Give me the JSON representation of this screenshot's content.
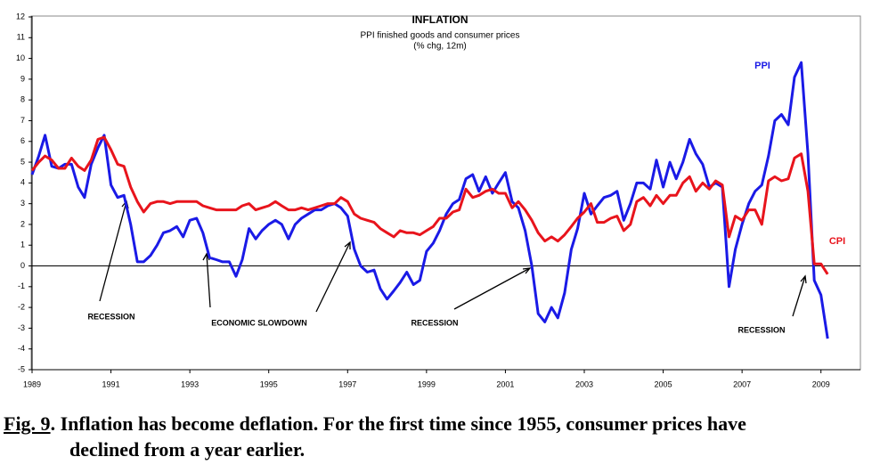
{
  "chart_data": {
    "type": "line",
    "title": "INFLATION",
    "subtitle": [
      "PPI finished goods and consumer prices",
      "(% chg, 12m)"
    ],
    "x": [
      1989,
      1989.17,
      1989.33,
      1989.5,
      1989.67,
      1989.83,
      1990,
      1990.17,
      1990.33,
      1990.5,
      1990.67,
      1990.83,
      1991,
      1991.17,
      1991.33,
      1991.5,
      1991.67,
      1991.83,
      1992,
      1992.17,
      1992.33,
      1992.5,
      1992.67,
      1992.83,
      1993,
      1993.17,
      1993.33,
      1993.5,
      1993.67,
      1993.83,
      1994,
      1994.17,
      1994.33,
      1994.5,
      1994.67,
      1994.83,
      1995,
      1995.17,
      1995.33,
      1995.5,
      1995.67,
      1995.83,
      1996,
      1996.17,
      1996.33,
      1996.5,
      1996.67,
      1996.83,
      1997,
      1997.17,
      1997.33,
      1997.5,
      1997.67,
      1997.83,
      1998,
      1998.17,
      1998.33,
      1998.5,
      1998.67,
      1998.83,
      1999,
      1999.17,
      1999.33,
      1999.5,
      1999.67,
      1999.83,
      2000,
      2000.17,
      2000.33,
      2000.5,
      2000.67,
      2000.83,
      2001,
      2001.17,
      2001.33,
      2001.5,
      2001.67,
      2001.83,
      2002,
      2002.17,
      2002.33,
      2002.5,
      2002.67,
      2002.83,
      2003,
      2003.17,
      2003.33,
      2003.5,
      2003.67,
      2003.83,
      2004,
      2004.17,
      2004.33,
      2004.5,
      2004.67,
      2004.83,
      2005,
      2005.17,
      2005.33,
      2005.5,
      2005.67,
      2005.83,
      2006,
      2006.17,
      2006.33,
      2006.5,
      2006.67,
      2006.83,
      2007,
      2007.17,
      2007.33,
      2007.5,
      2007.67,
      2007.83,
      2008,
      2008.17,
      2008.33,
      2008.5,
      2008.67,
      2008.83,
      2009,
      2009.17
    ],
    "series": [
      {
        "name": "PPI",
        "color": "#1a1ae6",
        "values": [
          4.4,
          5.3,
          6.3,
          4.8,
          4.7,
          4.9,
          4.9,
          3.8,
          3.3,
          4.9,
          5.7,
          6.3,
          3.9,
          3.3,
          3.4,
          2.0,
          0.2,
          0.2,
          0.5,
          1.0,
          1.6,
          1.7,
          1.9,
          1.4,
          2.2,
          2.3,
          1.6,
          0.4,
          0.3,
          0.2,
          0.2,
          -0.5,
          0.3,
          1.8,
          1.3,
          1.7,
          2.0,
          2.2,
          2.0,
          1.3,
          2.0,
          2.3,
          2.5,
          2.7,
          2.7,
          2.9,
          3.0,
          2.8,
          2.4,
          0.8,
          0.0,
          -0.3,
          -0.2,
          -1.1,
          -1.6,
          -1.2,
          -0.8,
          -0.3,
          -0.9,
          -0.7,
          0.7,
          1.1,
          1.7,
          2.5,
          3.0,
          3.2,
          4.2,
          4.4,
          3.6,
          4.3,
          3.5,
          4.0,
          4.5,
          3.1,
          2.8,
          1.7,
          0.0,
          -2.3,
          -2.7,
          -2.0,
          -2.5,
          -1.3,
          0.8,
          1.8,
          3.5,
          2.5,
          2.9,
          3.3,
          3.4,
          3.6,
          2.2,
          3.0,
          4.0,
          4.0,
          3.7,
          5.1,
          3.8,
          5.0,
          4.2,
          5.0,
          6.1,
          5.4,
          4.9,
          3.8,
          4.0,
          3.8,
          -1.0,
          0.8,
          2.0,
          3.0,
          3.6,
          3.9,
          5.3,
          7.0,
          7.3,
          6.8,
          9.1,
          9.8,
          5.4,
          -0.7,
          -1.4,
          -3.5
        ]
      },
      {
        "name": "CPI",
        "color": "#e8141c",
        "values": [
          4.6,
          5.0,
          5.3,
          5.1,
          4.7,
          4.7,
          5.2,
          4.8,
          4.6,
          5.1,
          6.1,
          6.2,
          5.6,
          4.9,
          4.8,
          3.8,
          3.1,
          2.6,
          3.0,
          3.1,
          3.1,
          3.0,
          3.1,
          3.1,
          3.1,
          3.1,
          2.9,
          2.8,
          2.7,
          2.7,
          2.7,
          2.7,
          2.9,
          3.0,
          2.7,
          2.8,
          2.9,
          3.1,
          2.9,
          2.7,
          2.7,
          2.8,
          2.7,
          2.8,
          2.9,
          3.0,
          3.0,
          3.3,
          3.1,
          2.5,
          2.3,
          2.2,
          2.1,
          1.8,
          1.6,
          1.4,
          1.7,
          1.6,
          1.6,
          1.5,
          1.7,
          1.9,
          2.3,
          2.3,
          2.6,
          2.7,
          3.7,
          3.3,
          3.4,
          3.6,
          3.7,
          3.5,
          3.5,
          2.8,
          3.1,
          2.7,
          2.2,
          1.6,
          1.2,
          1.4,
          1.2,
          1.5,
          1.9,
          2.3,
          2.6,
          3.0,
          2.1,
          2.1,
          2.3,
          2.4,
          1.7,
          2.0,
          3.1,
          3.3,
          2.9,
          3.4,
          3.0,
          3.4,
          3.4,
          4.0,
          4.3,
          3.6,
          4.0,
          3.7,
          4.1,
          3.9,
          1.4,
          2.4,
          2.2,
          2.7,
          2.7,
          2.0,
          4.1,
          4.3,
          4.1,
          4.2,
          5.2,
          5.4,
          3.6,
          0.1,
          0.1,
          -0.4
        ]
      }
    ],
    "xlim": [
      1989,
      2010
    ],
    "xticks": [
      1989,
      1991,
      1993,
      1995,
      1997,
      1999,
      2001,
      2003,
      2005,
      2007,
      2009
    ],
    "ylim": [
      -5,
      12
    ],
    "yticks": [
      -5,
      -4,
      -3,
      -2,
      -1,
      0,
      1,
      2,
      3,
      4,
      5,
      6,
      7,
      8,
      9,
      10,
      11,
      12
    ],
    "grid": false,
    "zero_line": true,
    "annotations": [
      "RECESSION",
      "ECONOMIC SLOWDOWN",
      "RECESSION",
      "RECESSION"
    ]
  },
  "caption": {
    "label": "Fig. 9",
    "lines": [
      ". Inflation has become deflation. For the first time since 1955, consumer prices have",
      "declined from a year earlier."
    ]
  }
}
